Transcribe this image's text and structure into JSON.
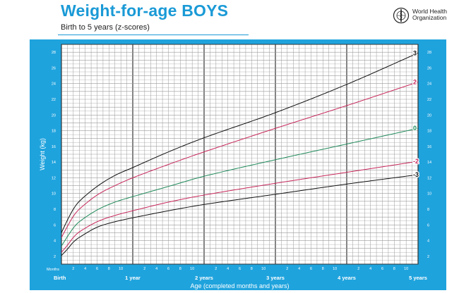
{
  "header": {
    "title": "Weight-for-age BOYS",
    "subtitle": "Birth to 5 years (z-scores)",
    "org_name_line1": "World Health",
    "org_name_line2": "Organization",
    "logo_icon": "who-emblem-icon"
  },
  "colors": {
    "panel": "#1fa3dd",
    "grid": "#9a9a9a",
    "line_z3": "#111111",
    "line_z2": "#c8285a",
    "line_z0": "#1f8a5a",
    "line_zm2": "#c8285a",
    "line_zm3": "#111111"
  },
  "chart_data": {
    "type": "line",
    "title": "Weight-for-age BOYS",
    "subtitle": "Birth to 5 years (z-scores)",
    "xlabel": "Age (completed months and years)",
    "ylabel": "Weight (kg)",
    "x_unit_label": "Months",
    "xlim": [
      0,
      60
    ],
    "ylim": [
      1,
      29
    ],
    "y_ticks": [
      2,
      4,
      6,
      8,
      10,
      12,
      14,
      16,
      18,
      20,
      22,
      24,
      26,
      28
    ],
    "month_ticks": [
      {
        "x": 2,
        "label": "2"
      },
      {
        "x": 4,
        "label": "4"
      },
      {
        "x": 6,
        "label": "6"
      },
      {
        "x": 8,
        "label": "8"
      },
      {
        "x": 10,
        "label": "10"
      },
      {
        "x": 14,
        "label": "2"
      },
      {
        "x": 16,
        "label": "4"
      },
      {
        "x": 18,
        "label": "6"
      },
      {
        "x": 20,
        "label": "8"
      },
      {
        "x": 22,
        "label": "10"
      },
      {
        "x": 26,
        "label": "2"
      },
      {
        "x": 28,
        "label": "4"
      },
      {
        "x": 30,
        "label": "6"
      },
      {
        "x": 32,
        "label": "8"
      },
      {
        "x": 34,
        "label": "10"
      },
      {
        "x": 38,
        "label": "2"
      },
      {
        "x": 40,
        "label": "4"
      },
      {
        "x": 42,
        "label": "6"
      },
      {
        "x": 44,
        "label": "8"
      },
      {
        "x": 46,
        "label": "10"
      },
      {
        "x": 50,
        "label": "2"
      },
      {
        "x": 52,
        "label": "4"
      },
      {
        "x": 54,
        "label": "6"
      },
      {
        "x": 56,
        "label": "8"
      },
      {
        "x": 58,
        "label": "10"
      }
    ],
    "year_ticks": [
      {
        "x": 0,
        "label": "Birth"
      },
      {
        "x": 12,
        "label": "1 year"
      },
      {
        "x": 24,
        "label": "2 years"
      },
      {
        "x": 36,
        "label": "3 years"
      },
      {
        "x": 48,
        "label": "4 years"
      },
      {
        "x": 60,
        "label": "5 years"
      }
    ],
    "grid": true,
    "x": [
      0,
      1,
      2,
      3,
      6,
      9,
      12,
      18,
      24,
      36,
      48,
      60
    ],
    "series": [
      {
        "name": "3",
        "color": "#111111",
        "values": [
          5.0,
          6.6,
          8.0,
          9.0,
          10.9,
          12.3,
          13.3,
          15.3,
          17.1,
          20.3,
          23.9,
          27.9
        ]
      },
      {
        "name": "2",
        "color": "#c8285a",
        "values": [
          4.4,
          5.8,
          7.1,
          8.0,
          9.8,
          11.0,
          12.0,
          13.7,
          15.3,
          18.3,
          21.2,
          24.2
        ]
      },
      {
        "name": "0",
        "color": "#1f8a5a",
        "values": [
          3.3,
          4.5,
          5.6,
          6.4,
          7.9,
          8.9,
          9.6,
          10.9,
          12.2,
          14.3,
          16.3,
          18.3
        ]
      },
      {
        "name": "-2",
        "color": "#c8285a",
        "values": [
          2.5,
          3.4,
          4.4,
          5.1,
          6.4,
          7.2,
          7.8,
          8.9,
          9.8,
          11.3,
          12.7,
          14.1
        ]
      },
      {
        "name": "-3",
        "color": "#111111",
        "values": [
          2.1,
          2.9,
          3.8,
          4.4,
          5.7,
          6.4,
          6.9,
          7.8,
          8.6,
          9.9,
          11.2,
          12.4
        ]
      }
    ]
  }
}
